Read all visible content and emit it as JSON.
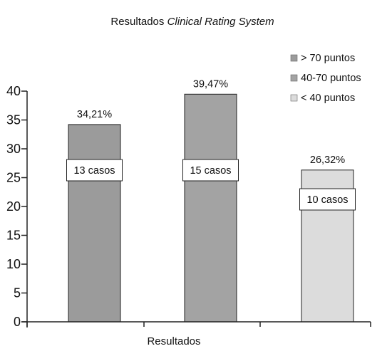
{
  "chart_data": {
    "type": "bar",
    "title": "Resultados ",
    "title_italic": "Clinical Rating System",
    "xlabel": "Resultados",
    "ylabel": "",
    "ylim": [
      0,
      40
    ],
    "yticks": [
      0,
      5,
      10,
      15,
      20,
      25,
      30,
      35,
      40
    ],
    "grid": false,
    "legend_position": "top-right",
    "series": [
      {
        "name": "> 70 puntos",
        "value": 34.21,
        "value_label": "34,21%",
        "cases_label": "13 casos",
        "color": "#9b9b9b"
      },
      {
        "name": "40-70 puntos",
        "value": 39.47,
        "value_label": "39,47%",
        "cases_label": "15 casos",
        "color": "#a3a3a3"
      },
      {
        "name": "< 40 puntos",
        "value": 26.32,
        "value_label": "26,32%",
        "cases_label": "10 casos",
        "color": "#dcdcdc"
      }
    ]
  }
}
